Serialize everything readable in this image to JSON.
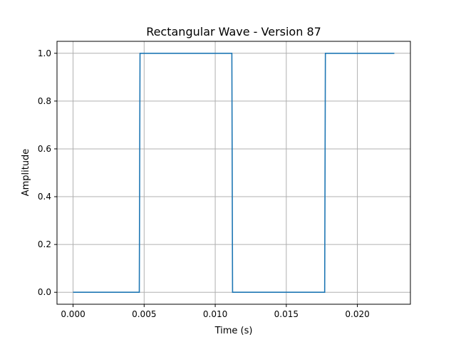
{
  "chart_data": {
    "type": "line",
    "title": "Rectangular Wave - Version 87",
    "xlabel": "Time (s)",
    "ylabel": "Amplitude",
    "xlim": [
      -0.00113,
      0.02373
    ],
    "ylim": [
      -0.05,
      1.05
    ],
    "grid": true,
    "legend": "none",
    "line_color": "#1f77b4",
    "xticks": [
      {
        "value": 0.0,
        "label": "0.000"
      },
      {
        "value": 0.005,
        "label": "0.005"
      },
      {
        "value": 0.01,
        "label": "0.010"
      },
      {
        "value": 0.015,
        "label": "0.015"
      },
      {
        "value": 0.02,
        "label": "0.020"
      }
    ],
    "yticks": [
      {
        "value": 0.0,
        "label": "0.0"
      },
      {
        "value": 0.2,
        "label": "0.2"
      },
      {
        "value": 0.4,
        "label": "0.4"
      },
      {
        "value": 0.6,
        "label": "0.6"
      },
      {
        "value": 0.8,
        "label": "0.8"
      },
      {
        "value": 1.0,
        "label": "1.0"
      }
    ],
    "series": [
      {
        "x": [
          0.0,
          0.00466,
          0.00471,
          0.01117,
          0.01122,
          0.0177,
          0.01775,
          0.0226
        ],
        "y": [
          0,
          0,
          1,
          1,
          0,
          0,
          1,
          1
        ]
      }
    ]
  }
}
